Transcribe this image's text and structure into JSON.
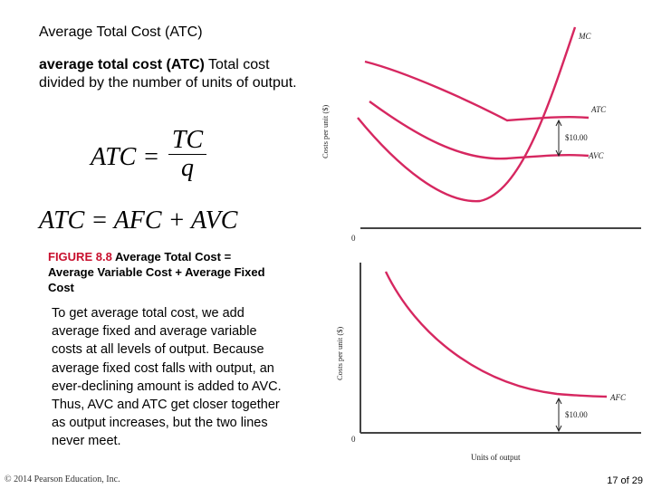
{
  "title": "Average Total Cost (ATC)",
  "definition": {
    "term": "average total cost (ATC)",
    "text": "Total cost divided by the number of units of output."
  },
  "formula1": {
    "lhs": "ATC =",
    "numerator": "TC",
    "denominator": "q"
  },
  "formula2": "ATC = AFC + AVC",
  "figure_caption": {
    "label": "FIGURE 8.8",
    "text": "Average Total Cost = Average Variable Cost + Average Fixed Cost"
  },
  "body_text": "To get average total cost, we add average fixed and average variable costs at all levels of output. Because average fixed cost falls with output, an ever-declining amount is added to AVC. Thus, AVC and ATC get closer together as output increases, but the two lines never meet.",
  "footer": {
    "copyright": "© 2014 Pearson Education, Inc.",
    "page": "17 of 29"
  },
  "chart_data": [
    {
      "type": "line",
      "ylabel": "Costs per unit ($)",
      "xlabel": "",
      "origin_label": "0",
      "series": [
        {
          "name": "MC",
          "color": "#d62760"
        },
        {
          "name": "ATC",
          "color": "#d62760"
        },
        {
          "name": "AVC",
          "color": "#d62760"
        }
      ],
      "annotations": [
        {
          "text": "$10.00",
          "between": [
            "ATC",
            "AVC"
          ]
        }
      ]
    },
    {
      "type": "line",
      "ylabel": "Costs per unit ($)",
      "xlabel": "Units of output",
      "origin_label": "0",
      "series": [
        {
          "name": "AFC",
          "color": "#d62760"
        }
      ],
      "annotations": [
        {
          "text": "$10.00",
          "between": [
            "AFC",
            "x-axis"
          ]
        }
      ]
    }
  ]
}
